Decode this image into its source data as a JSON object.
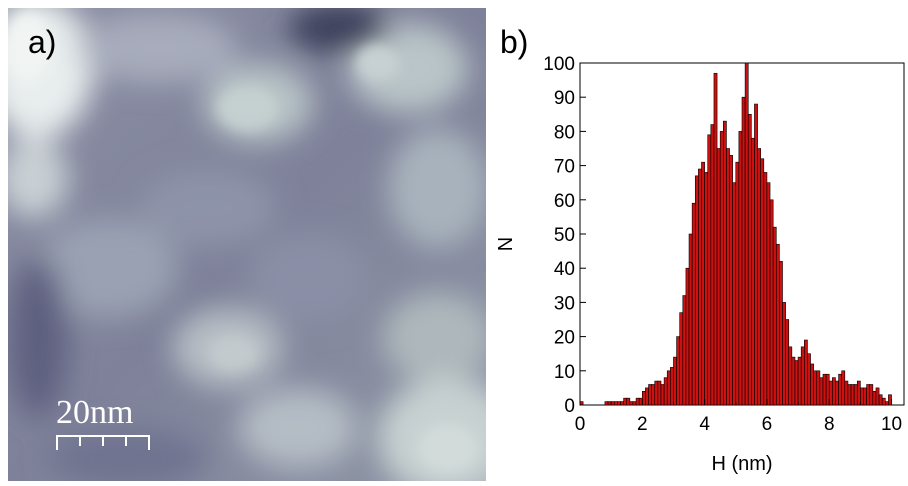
{
  "panel_a": {
    "label": "a)",
    "scale_bar_label": "20nm"
  },
  "panel_b": {
    "label": "b)"
  },
  "chart_data": {
    "type": "bar",
    "xlabel": "H (nm)",
    "ylabel": "N",
    "xlim": [
      0,
      10.4
    ],
    "ylim": [
      0,
      100
    ],
    "x_ticks": [
      0,
      2,
      4,
      6,
      8,
      10
    ],
    "y_ticks": [
      0,
      10,
      20,
      30,
      40,
      50,
      60,
      70,
      80,
      90,
      100
    ],
    "bar_color": "#cc1111",
    "bin_width": 0.1,
    "bin_start": 0,
    "values": [
      1,
      0,
      0,
      0,
      0,
      0,
      0,
      0,
      1,
      1,
      1,
      1,
      1,
      1,
      2,
      2,
      1,
      1,
      2,
      2,
      4,
      5,
      6,
      6,
      7,
      7,
      6,
      8,
      10,
      11,
      14,
      20,
      27,
      32,
      40,
      50,
      59,
      67,
      69,
      71,
      68,
      79,
      82,
      97,
      75,
      80,
      83,
      75,
      73,
      65,
      71,
      80,
      90,
      100,
      85,
      78,
      88,
      75,
      72,
      68,
      65,
      60,
      52,
      47,
      42,
      30,
      25,
      17,
      14,
      13,
      14,
      17,
      19,
      15,
      12,
      10,
      10,
      8,
      9,
      9,
      7,
      8,
      7,
      9,
      10,
      7,
      6,
      6,
      6,
      7,
      5,
      5,
      6,
      6,
      4,
      5,
      3,
      2,
      1,
      3
    ]
  }
}
